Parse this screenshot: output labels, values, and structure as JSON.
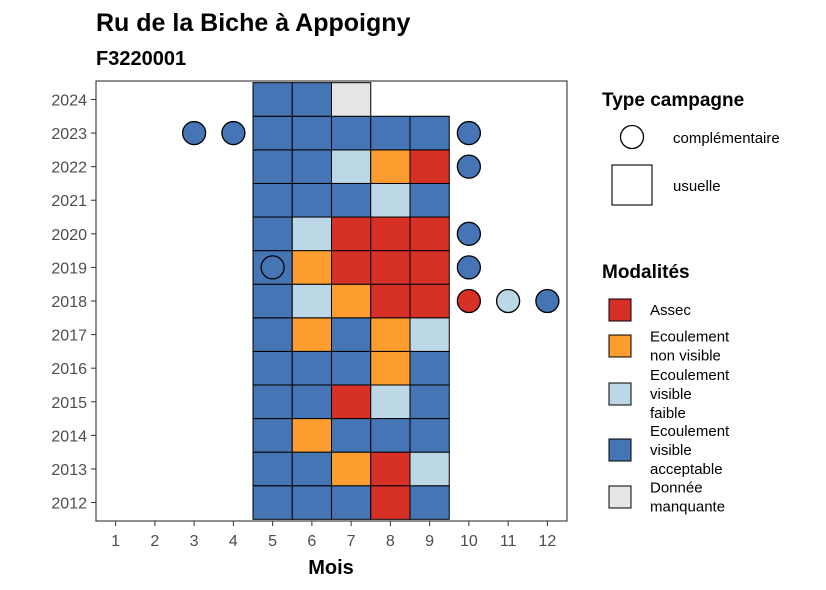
{
  "chart_data": {
    "type": "heatmap",
    "title": "Ru de la Biche à Appoigny",
    "subtitle": "F3220001",
    "xlabel": "Mois",
    "ylabel": "",
    "x_ticks": [
      1,
      2,
      3,
      4,
      5,
      6,
      7,
      8,
      9,
      10,
      11,
      12
    ],
    "y_ticks": [
      2012,
      2013,
      2014,
      2015,
      2016,
      2017,
      2018,
      2019,
      2020,
      2021,
      2022,
      2023,
      2024
    ],
    "xlim": [
      0.5,
      12.5
    ],
    "ylim": [
      2011.45,
      2024.55
    ],
    "grid": false,
    "modalities": [
      {
        "key": "assec",
        "label_lines": [
          "Assec"
        ],
        "color": "#d73027"
      },
      {
        "key": "non_visible",
        "label_lines": [
          "Ecoulement",
          "non visible"
        ],
        "color": "#fd9d2f"
      },
      {
        "key": "faible",
        "label_lines": [
          "Ecoulement",
          "visible",
          "faible"
        ],
        "color": "#bcd7e6"
      },
      {
        "key": "acceptable",
        "label_lines": [
          "Ecoulement",
          "visible",
          "acceptable"
        ],
        "color": "#4575b4"
      },
      {
        "key": "manquante",
        "label_lines": [
          "Donnée",
          "manquante"
        ],
        "color": "#e5e5e5"
      }
    ],
    "campaign_types": [
      {
        "key": "complementaire",
        "label": "complémentaire",
        "shape": "circle"
      },
      {
        "key": "usuelle",
        "label": "usuelle",
        "shape": "square"
      }
    ],
    "legend_titles": {
      "campaign": "Type campagne",
      "modalities": "Modalités"
    },
    "legend_position": "right",
    "points": [
      {
        "year": 2012,
        "month": 5,
        "modality": "acceptable",
        "campaign": "usuelle"
      },
      {
        "year": 2012,
        "month": 6,
        "modality": "acceptable",
        "campaign": "usuelle"
      },
      {
        "year": 2012,
        "month": 7,
        "modality": "acceptable",
        "campaign": "usuelle"
      },
      {
        "year": 2012,
        "month": 8,
        "modality": "assec",
        "campaign": "usuelle"
      },
      {
        "year": 2012,
        "month": 9,
        "modality": "acceptable",
        "campaign": "usuelle"
      },
      {
        "year": 2013,
        "month": 5,
        "modality": "acceptable",
        "campaign": "usuelle"
      },
      {
        "year": 2013,
        "month": 6,
        "modality": "acceptable",
        "campaign": "usuelle"
      },
      {
        "year": 2013,
        "month": 7,
        "modality": "non_visible",
        "campaign": "usuelle"
      },
      {
        "year": 2013,
        "month": 8,
        "modality": "assec",
        "campaign": "usuelle"
      },
      {
        "year": 2013,
        "month": 9,
        "modality": "faible",
        "campaign": "usuelle"
      },
      {
        "year": 2014,
        "month": 5,
        "modality": "acceptable",
        "campaign": "usuelle"
      },
      {
        "year": 2014,
        "month": 6,
        "modality": "non_visible",
        "campaign": "usuelle"
      },
      {
        "year": 2014,
        "month": 7,
        "modality": "acceptable",
        "campaign": "usuelle"
      },
      {
        "year": 2014,
        "month": 8,
        "modality": "acceptable",
        "campaign": "usuelle"
      },
      {
        "year": 2014,
        "month": 9,
        "modality": "acceptable",
        "campaign": "usuelle"
      },
      {
        "year": 2015,
        "month": 5,
        "modality": "acceptable",
        "campaign": "usuelle"
      },
      {
        "year": 2015,
        "month": 6,
        "modality": "acceptable",
        "campaign": "usuelle"
      },
      {
        "year": 2015,
        "month": 7,
        "modality": "assec",
        "campaign": "usuelle"
      },
      {
        "year": 2015,
        "month": 8,
        "modality": "faible",
        "campaign": "usuelle"
      },
      {
        "year": 2015,
        "month": 9,
        "modality": "acceptable",
        "campaign": "usuelle"
      },
      {
        "year": 2016,
        "month": 5,
        "modality": "acceptable",
        "campaign": "usuelle"
      },
      {
        "year": 2016,
        "month": 6,
        "modality": "acceptable",
        "campaign": "usuelle"
      },
      {
        "year": 2016,
        "month": 7,
        "modality": "acceptable",
        "campaign": "usuelle"
      },
      {
        "year": 2016,
        "month": 8,
        "modality": "non_visible",
        "campaign": "usuelle"
      },
      {
        "year": 2016,
        "month": 9,
        "modality": "acceptable",
        "campaign": "usuelle"
      },
      {
        "year": 2017,
        "month": 5,
        "modality": "acceptable",
        "campaign": "usuelle"
      },
      {
        "year": 2017,
        "month": 6,
        "modality": "non_visible",
        "campaign": "usuelle"
      },
      {
        "year": 2017,
        "month": 7,
        "modality": "acceptable",
        "campaign": "usuelle"
      },
      {
        "year": 2017,
        "month": 8,
        "modality": "non_visible",
        "campaign": "usuelle"
      },
      {
        "year": 2017,
        "month": 9,
        "modality": "faible",
        "campaign": "usuelle"
      },
      {
        "year": 2018,
        "month": 5,
        "modality": "acceptable",
        "campaign": "usuelle"
      },
      {
        "year": 2018,
        "month": 6,
        "modality": "faible",
        "campaign": "usuelle"
      },
      {
        "year": 2018,
        "month": 7,
        "modality": "non_visible",
        "campaign": "usuelle"
      },
      {
        "year": 2018,
        "month": 8,
        "modality": "assec",
        "campaign": "usuelle"
      },
      {
        "year": 2018,
        "month": 9,
        "modality": "assec",
        "campaign": "usuelle"
      },
      {
        "year": 2018,
        "month": 10,
        "modality": "assec",
        "campaign": "complementaire"
      },
      {
        "year": 2018,
        "month": 11,
        "modality": "faible",
        "campaign": "complementaire"
      },
      {
        "year": 2018,
        "month": 12,
        "modality": "acceptable",
        "campaign": "complementaire"
      },
      {
        "year": 2019,
        "month": 5,
        "modality": "acceptable",
        "campaign": "usuelle"
      },
      {
        "year": 2019,
        "month": 5,
        "modality": "acceptable",
        "campaign": "complementaire"
      },
      {
        "year": 2019,
        "month": 6,
        "modality": "non_visible",
        "campaign": "usuelle"
      },
      {
        "year": 2019,
        "month": 7,
        "modality": "assec",
        "campaign": "usuelle"
      },
      {
        "year": 2019,
        "month": 8,
        "modality": "assec",
        "campaign": "usuelle"
      },
      {
        "year": 2019,
        "month": 9,
        "modality": "assec",
        "campaign": "usuelle"
      },
      {
        "year": 2019,
        "month": 10,
        "modality": "acceptable",
        "campaign": "complementaire"
      },
      {
        "year": 2020,
        "month": 5,
        "modality": "acceptable",
        "campaign": "usuelle"
      },
      {
        "year": 2020,
        "month": 6,
        "modality": "faible",
        "campaign": "usuelle"
      },
      {
        "year": 2020,
        "month": 7,
        "modality": "assec",
        "campaign": "usuelle"
      },
      {
        "year": 2020,
        "month": 8,
        "modality": "assec",
        "campaign": "usuelle"
      },
      {
        "year": 2020,
        "month": 9,
        "modality": "assec",
        "campaign": "usuelle"
      },
      {
        "year": 2020,
        "month": 10,
        "modality": "acceptable",
        "campaign": "complementaire"
      },
      {
        "year": 2021,
        "month": 5,
        "modality": "acceptable",
        "campaign": "usuelle"
      },
      {
        "year": 2021,
        "month": 6,
        "modality": "acceptable",
        "campaign": "usuelle"
      },
      {
        "year": 2021,
        "month": 7,
        "modality": "acceptable",
        "campaign": "usuelle"
      },
      {
        "year": 2021,
        "month": 8,
        "modality": "faible",
        "campaign": "usuelle"
      },
      {
        "year": 2021,
        "month": 9,
        "modality": "acceptable",
        "campaign": "usuelle"
      },
      {
        "year": 2022,
        "month": 5,
        "modality": "acceptable",
        "campaign": "usuelle"
      },
      {
        "year": 2022,
        "month": 6,
        "modality": "acceptable",
        "campaign": "usuelle"
      },
      {
        "year": 2022,
        "month": 7,
        "modality": "faible",
        "campaign": "usuelle"
      },
      {
        "year": 2022,
        "month": 8,
        "modality": "non_visible",
        "campaign": "usuelle"
      },
      {
        "year": 2022,
        "month": 9,
        "modality": "assec",
        "campaign": "usuelle"
      },
      {
        "year": 2022,
        "month": 10,
        "modality": "acceptable",
        "campaign": "complementaire"
      },
      {
        "year": 2023,
        "month": 3,
        "modality": "acceptable",
        "campaign": "complementaire"
      },
      {
        "year": 2023,
        "month": 4,
        "modality": "acceptable",
        "campaign": "complementaire"
      },
      {
        "year": 2023,
        "month": 5,
        "modality": "acceptable",
        "campaign": "usuelle"
      },
      {
        "year": 2023,
        "month": 6,
        "modality": "acceptable",
        "campaign": "usuelle"
      },
      {
        "year": 2023,
        "month": 7,
        "modality": "acceptable",
        "campaign": "usuelle"
      },
      {
        "year": 2023,
        "month": 8,
        "modality": "acceptable",
        "campaign": "usuelle"
      },
      {
        "year": 2023,
        "month": 9,
        "modality": "acceptable",
        "campaign": "usuelle"
      },
      {
        "year": 2023,
        "month": 10,
        "modality": "acceptable",
        "campaign": "complementaire"
      },
      {
        "year": 2024,
        "month": 5,
        "modality": "acceptable",
        "campaign": "usuelle"
      },
      {
        "year": 2024,
        "month": 6,
        "modality": "acceptable",
        "campaign": "usuelle"
      },
      {
        "year": 2024,
        "month": 7,
        "modality": "manquante",
        "campaign": "usuelle"
      }
    ]
  }
}
